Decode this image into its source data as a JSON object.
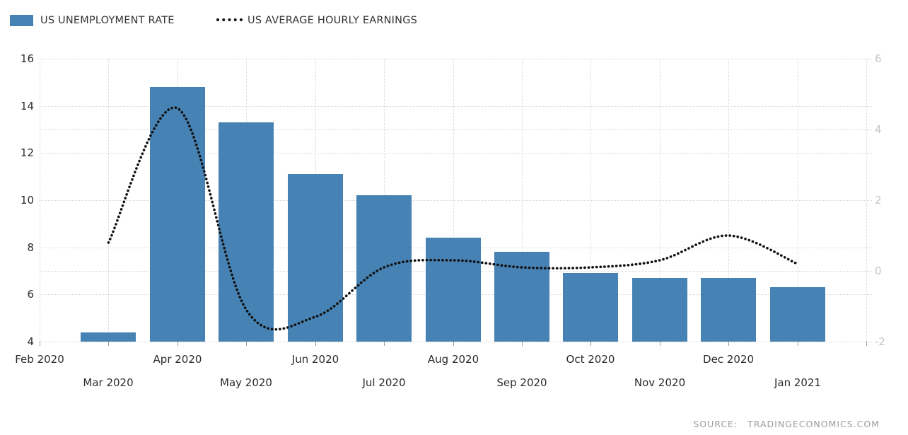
{
  "legend": {
    "items": [
      {
        "label": "US UNEMPLOYMENT RATE",
        "marker": "bar-swatch",
        "color": "#4683B4"
      },
      {
        "label": "US AVERAGE HOURLY EARNINGS",
        "marker": "dotted-line",
        "color": "#111111"
      }
    ]
  },
  "source": {
    "label": "SOURCE:",
    "value": "TRADINGECONOMICS.COM"
  },
  "chart_data": {
    "type": "combo",
    "title": "",
    "x_tick_labels": [
      "Feb 2020",
      "Mar 2020",
      "Apr 2020",
      "May 2020",
      "Jun 2020",
      "Jul 2020",
      "Aug 2020",
      "Sep 2020",
      "Oct 2020",
      "Nov 2020",
      "Dec 2020",
      "Jan 2021"
    ],
    "categories": [
      "Mar 2020",
      "Apr 2020",
      "May 2020",
      "Jun 2020",
      "Jul 2020",
      "Aug 2020",
      "Sep 2020",
      "Oct 2020",
      "Nov 2020",
      "Dec 2020",
      "Jan 2021"
    ],
    "series": [
      {
        "name": "US Unemployment Rate",
        "type": "bar",
        "y_axis": "left",
        "color": "#4683B4",
        "values": [
          4.4,
          14.8,
          13.3,
          11.1,
          10.2,
          8.4,
          7.8,
          6.9,
          6.7,
          6.7,
          6.3
        ]
      },
      {
        "name": "US Average Hourly Earnings",
        "type": "line",
        "line_style": "dotted",
        "y_axis": "right",
        "color": "#111111",
        "values": [
          0.8,
          4.6,
          -1.1,
          -1.3,
          0.1,
          0.3,
          0.1,
          0.1,
          0.3,
          1.0,
          0.2
        ]
      }
    ],
    "left_axis": {
      "min": 4,
      "max": 16,
      "ticks": [
        16,
        14,
        12,
        10,
        8,
        6,
        4
      ]
    },
    "right_axis": {
      "min": -2,
      "max": 6,
      "ticks": [
        6,
        4,
        2,
        0,
        -2
      ]
    },
    "grid": {
      "horizontal": "dotted",
      "vertical": "dotted",
      "color": "#D6D6D6"
    },
    "legend_position": "top-left"
  },
  "colors": {
    "bar": "#4683B4",
    "line": "#111111",
    "axis_text_dark": "#2D2D2D",
    "axis_text_light": "#C6C6C6",
    "grid": "#D6D6D6",
    "source_text": "#9B9B9B"
  }
}
